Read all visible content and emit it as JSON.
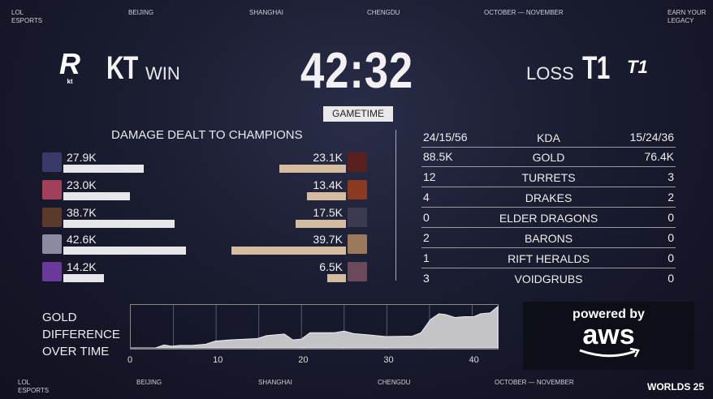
{
  "header": {
    "items": [
      "LOL ESPORTS",
      "BEIJING",
      "SHANGHAI",
      "CHENGDU",
      "OCTOBER — NOVEMBER",
      "EARN YOUR LEGACY"
    ]
  },
  "teams": {
    "left": {
      "name": "KT",
      "result": "WIN",
      "logo_text": "ROLSTER kt"
    },
    "right": {
      "name": "T1",
      "result": "LOSS",
      "logo_text": "T1"
    }
  },
  "timer": "42:32",
  "gametime_label": "GAMETIME",
  "damage": {
    "title": "DAMAGE DEALT TO CHAMPIONS",
    "left": [
      {
        "label": "27.9K",
        "value": 27.9,
        "color": "#3a3a6a"
      },
      {
        "label": "23.0K",
        "value": 23.0,
        "color": "#a0405a"
      },
      {
        "label": "38.7K",
        "value": 38.7,
        "color": "#5a3a2a"
      },
      {
        "label": "42.6K",
        "value": 42.6,
        "color": "#8a8aa0"
      },
      {
        "label": "14.2K",
        "value": 14.2,
        "color": "#6a3a9a"
      }
    ],
    "right": [
      {
        "label": "23.1K",
        "value": 23.1,
        "color": "#5a2020"
      },
      {
        "label": "13.4K",
        "value": 13.4,
        "color": "#8a3a20"
      },
      {
        "label": "17.5K",
        "value": 17.5,
        "color": "#3a3a50"
      },
      {
        "label": "39.7K",
        "value": 39.7,
        "color": "#9a7a5a"
      },
      {
        "label": "6.5K",
        "value": 6.5,
        "color": "#6a4a5a"
      }
    ],
    "left_bar_color": "#e6e6ea",
    "right_bar_color": "#d4bca0"
  },
  "stats": [
    {
      "left": "24/15/56",
      "label": "KDA",
      "right": "15/24/36"
    },
    {
      "left": "88.5K",
      "label": "GOLD",
      "right": "76.4K"
    },
    {
      "left": "12",
      "label": "TURRETS",
      "right": "3"
    },
    {
      "left": "4",
      "label": "DRAKES",
      "right": "2"
    },
    {
      "left": "0",
      "label": "ELDER DRAGONS",
      "right": "0"
    },
    {
      "left": "2",
      "label": "BARONS",
      "right": "0"
    },
    {
      "left": "1",
      "label": "RIFT HERALDS",
      "right": "0"
    },
    {
      "left": "3",
      "label": "VOIDGRUBS",
      "right": "0"
    }
  ],
  "gold_chart": {
    "title_lines": [
      "GOLD",
      "DIFFERENCE",
      "OVER TIME"
    ]
  },
  "chart_data": {
    "type": "area",
    "xlabel": "",
    "ylabel": "",
    "xlim": [
      0,
      43
    ],
    "x_ticks": [
      "0",
      "10",
      "20",
      "30",
      "40"
    ],
    "grid": "vertical every 5",
    "x": [
      0,
      2.9,
      3.9,
      4.8,
      5.8,
      7.2,
      8.8,
      9.9,
      11.6,
      14.8,
      15.9,
      18,
      19,
      20,
      21,
      22.8,
      23.9,
      25,
      26.1,
      27.8,
      29.9,
      33,
      34,
      35.1,
      36.1,
      36.9,
      38,
      39.1,
      40.2,
      41,
      42.1,
      43
    ],
    "y_relative": [
      0,
      0,
      0.07,
      0.04,
      0.06,
      0.06,
      0.09,
      0.16,
      0.19,
      0.22,
      0.29,
      0.33,
      0.19,
      0.21,
      0.36,
      0.36,
      0.36,
      0.4,
      0.34,
      0.31,
      0.27,
      0.28,
      0.36,
      0.67,
      0.81,
      0.79,
      0.72,
      0.74,
      0.74,
      0.81,
      0.83,
      0.98
    ],
    "fill": "#c4c4c8"
  },
  "sponsor": {
    "line1": "powered by",
    "line2": "aws"
  },
  "footer": {
    "items": [
      "LOL ESPORTS",
      "BEIJING",
      "SHANGHAI",
      "CHENGDU",
      "OCTOBER — NOVEMBER"
    ],
    "logo": "WORLDS 25"
  }
}
